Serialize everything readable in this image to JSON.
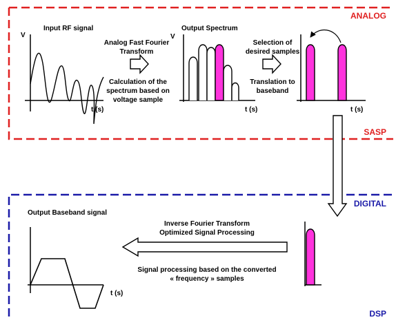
{
  "colors": {
    "analog_border": "#e02020",
    "digital_border": "#1a1aa8",
    "magenta": "#ff33dd",
    "black": "#000000"
  },
  "sections": {
    "analog": "ANALOG",
    "sasp": "SASP",
    "digital": "DIGITAL",
    "dsp": "DSP"
  },
  "analog_block": {
    "input_title": "Input RF signal",
    "v1": "V",
    "t1": "t (s)",
    "fft_line1": "Analog Fast Fourier",
    "fft_line2": "Transform",
    "calc_line1": "Calculation of the",
    "calc_line2": "spectrum based on",
    "calc_line3": "voltage sample",
    "spectrum_title": "Output Spectrum",
    "v2": "V",
    "t2": "t (s)",
    "sel_line1": "Selection of",
    "sel_line2": "desired samples",
    "trans_line1": "Translation to",
    "trans_line2": "baseband",
    "t3": "t (s)"
  },
  "digital_block": {
    "baseband_title": "Output Baseband signal",
    "ift_line1": "Inverse Fourier Transform",
    "ift_line2": "Optimized Signal Processing",
    "proc_line1": "Signal processing based on the converted",
    "proc_line2": "« frequency » samples",
    "t4": "t (s)"
  }
}
